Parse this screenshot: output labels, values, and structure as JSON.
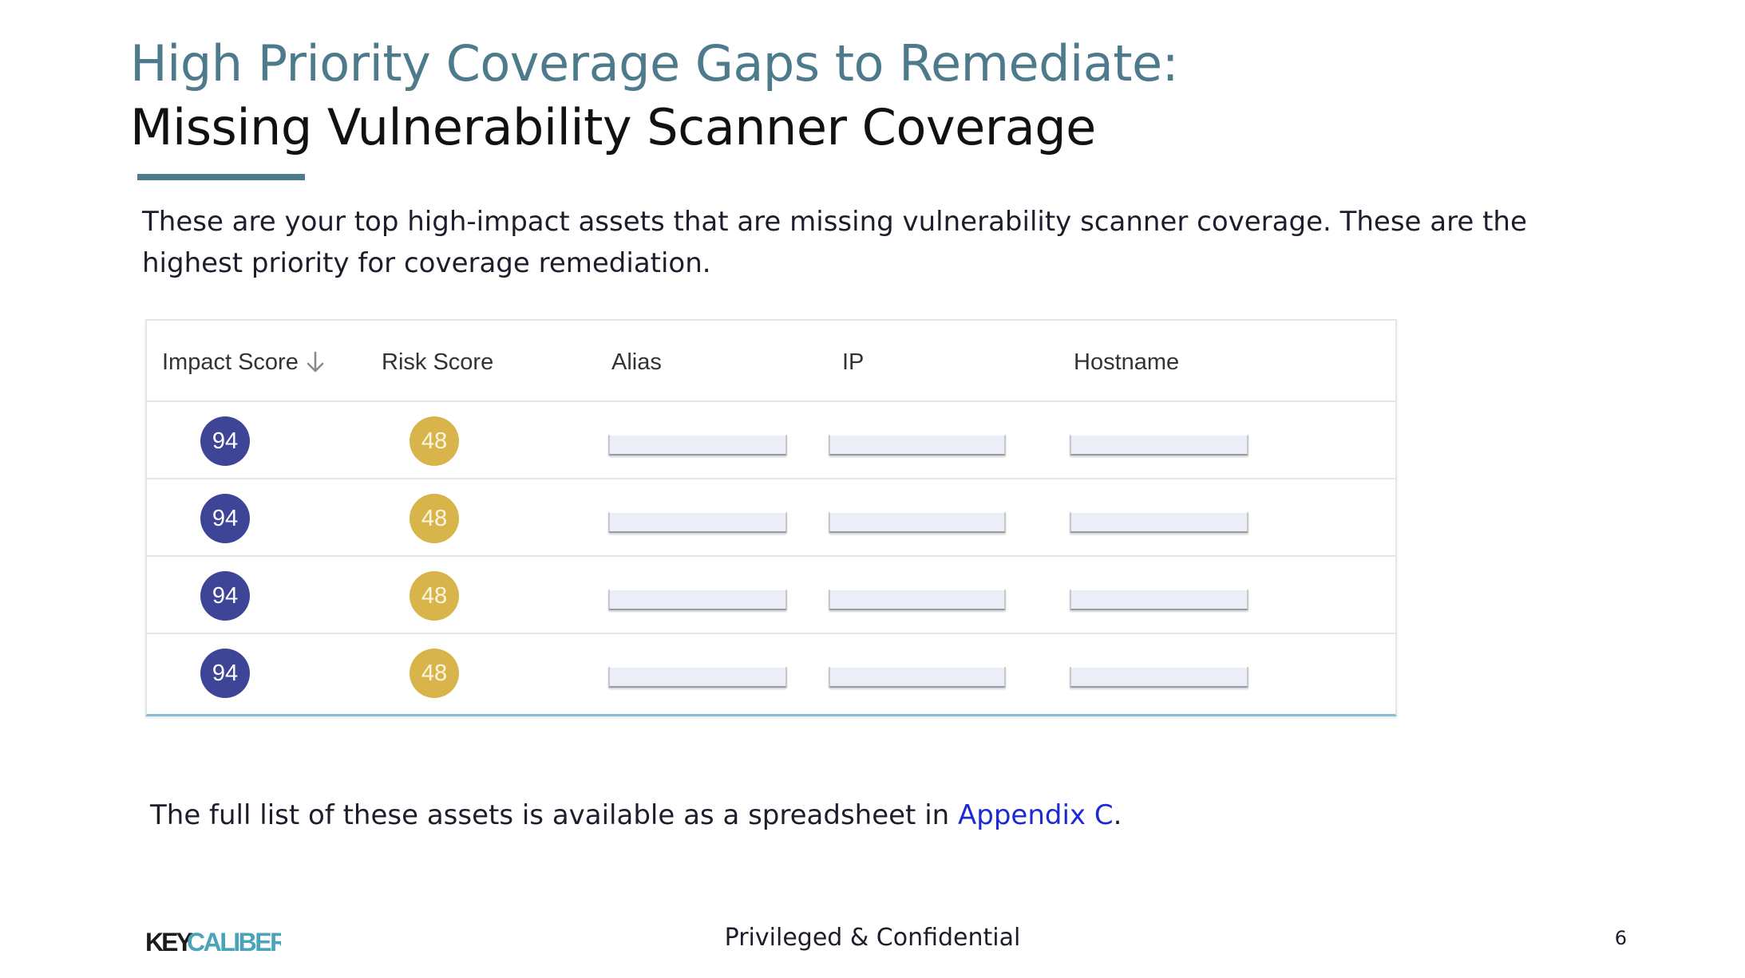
{
  "slide": {
    "title_line1": "High Priority Coverage Gaps to Remediate:",
    "title_line2": "Missing Vulnerability Scanner Coverage",
    "intro": "These are your top high-impact assets that are missing vulnerability scanner coverage. These are the highest priority for coverage remediation.",
    "footnote_before": "The full list of these assets is available as a spreadsheet in ",
    "footnote_link": "Appendix C",
    "footnote_after": ".",
    "footer_center": "Privileged & Confidential",
    "page_number": "6",
    "logo_text": "KEYCALIBER",
    "logo_colors": {
      "key": "#1b1b1b",
      "caliber": "#4aa3b8"
    },
    "accent_color": "#4d7b8c",
    "link_color": "#1c29d4"
  },
  "table": {
    "headers": {
      "impact_score": "Impact Score",
      "risk_score": "Risk Score",
      "alias": "Alias",
      "ip": "IP",
      "hostname": "Hostname"
    },
    "sort_icon": "arrow-down-icon",
    "impact_color": "#3f4596",
    "risk_color": "#d9b44b",
    "rows": [
      {
        "impact": "94",
        "risk": "48"
      },
      {
        "impact": "94",
        "risk": "48"
      },
      {
        "impact": "94",
        "risk": "48"
      },
      {
        "impact": "94",
        "risk": "48"
      }
    ]
  }
}
